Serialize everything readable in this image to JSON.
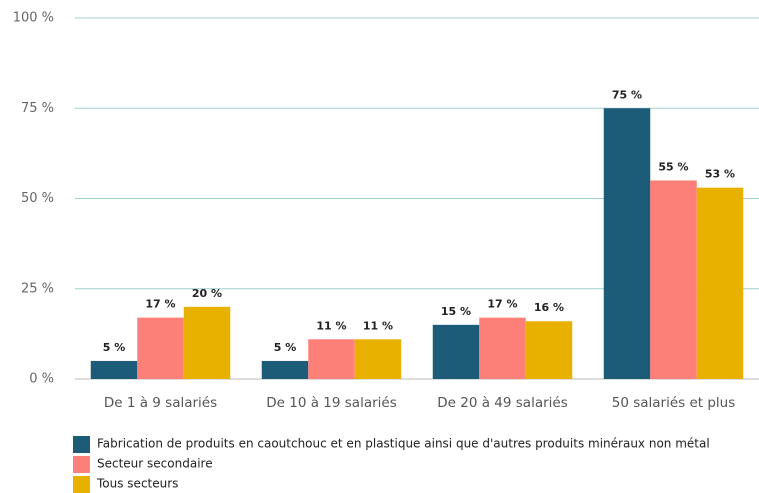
{
  "chart_data": {
    "type": "bar",
    "categories": [
      "De 1 à 9 salariés",
      "De 10 à 19 salariés",
      "De 20 à 49 salariés",
      "50 salariés et plus"
    ],
    "series": [
      {
        "name": "Fabrication de produits en caoutchouc et en plastique ainsi que d'autres produits minéraux non métal",
        "color": "#1d5c78",
        "values": [
          5,
          5,
          15,
          75
        ],
        "value_labels": [
          "5 %",
          "5 %",
          "15 %",
          "75 %"
        ]
      },
      {
        "name": "Secteur secondaire",
        "color": "#fc7f78",
        "values": [
          17,
          11,
          17,
          55
        ],
        "value_labels": [
          "17 %",
          "11 %",
          "17 %",
          "55 %"
        ]
      },
      {
        "name": "Tous secteurs",
        "color": "#e8b100",
        "values": [
          20,
          11,
          16,
          53
        ],
        "value_labels": [
          "20 %",
          "11 %",
          "16 %",
          "53 %"
        ]
      }
    ],
    "ylim": [
      0,
      100
    ],
    "yticks": [
      {
        "value": 0,
        "label": "0 %"
      },
      {
        "value": 25,
        "label": "25 %"
      },
      {
        "value": 50,
        "label": "50 %"
      },
      {
        "value": 75,
        "label": "75 %"
      },
      {
        "value": 100,
        "label": "100 %"
      }
    ],
    "grid": true,
    "legend": "bottom"
  }
}
